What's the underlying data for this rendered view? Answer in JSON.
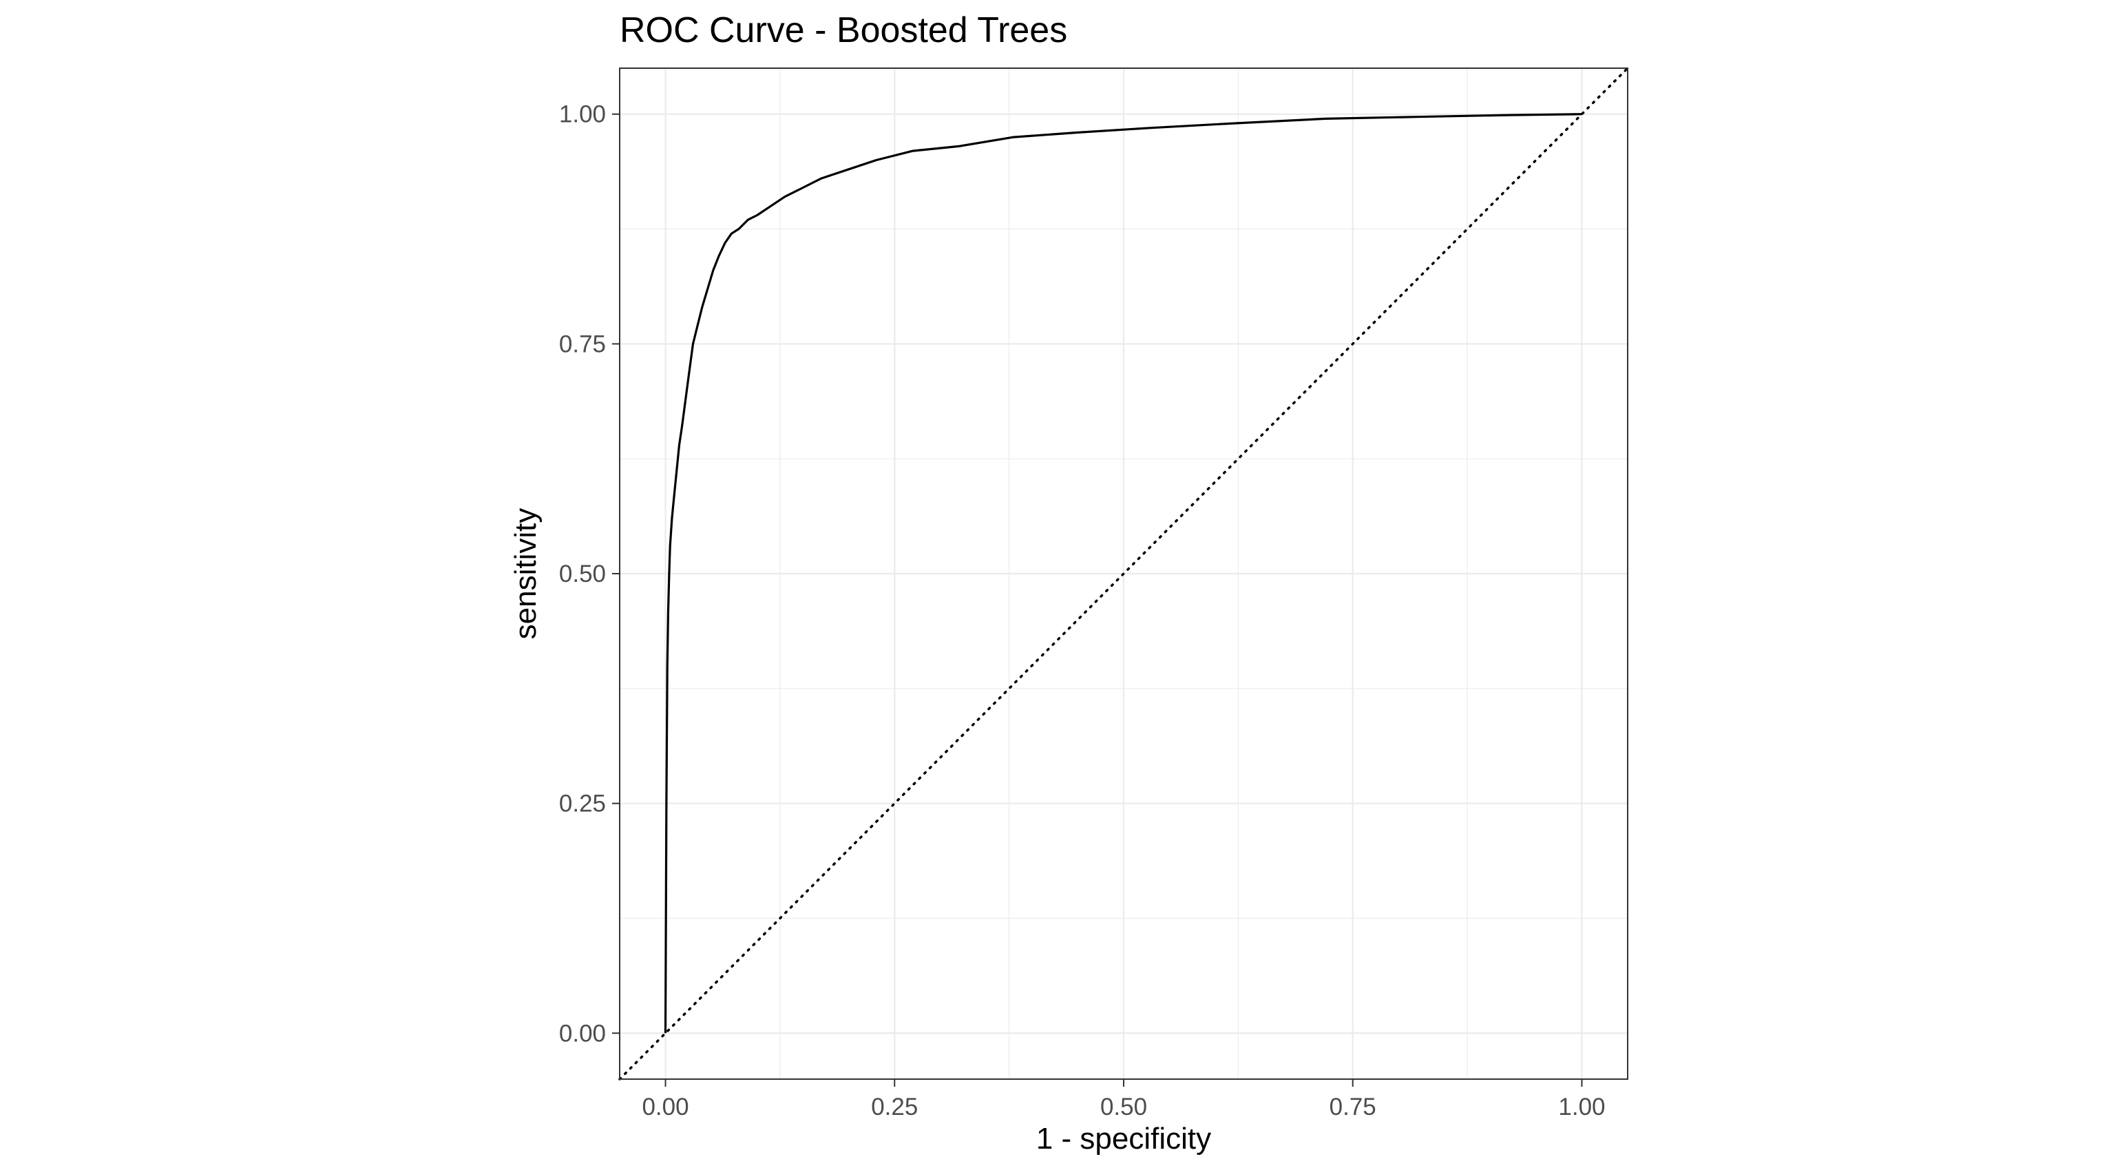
{
  "chart_data": {
    "type": "line",
    "title": "ROC Curve - Boosted Trees",
    "xlabel": "1 - specificity",
    "ylabel": "sensitivity",
    "xlim": [
      -0.05,
      1.05
    ],
    "ylim": [
      -0.05,
      1.05
    ],
    "x_ticks": [
      "0.00",
      "0.25",
      "0.50",
      "0.75",
      "1.00"
    ],
    "y_ticks": [
      "0.00",
      "0.25",
      "0.50",
      "0.75",
      "1.00"
    ],
    "grid": true,
    "reference_line": {
      "style": "dotted",
      "x": [
        -0.05,
        1.05
      ],
      "y": [
        -0.05,
        1.05
      ]
    },
    "series": [
      {
        "x": [
          0.0,
          0.001,
          0.002,
          0.003,
          0.004,
          0.005,
          0.007,
          0.009,
          0.012,
          0.015,
          0.018,
          0.022,
          0.026,
          0.03,
          0.035,
          0.04,
          0.046,
          0.052,
          0.058,
          0.065,
          0.072,
          0.08,
          0.09,
          0.1,
          0.115,
          0.13,
          0.15,
          0.17,
          0.2,
          0.23,
          0.27,
          0.32,
          0.38,
          0.45,
          0.53,
          0.62,
          0.72,
          0.82,
          0.92,
          1.0
        ],
        "y": [
          0.0,
          0.25,
          0.4,
          0.46,
          0.5,
          0.53,
          0.56,
          0.58,
          0.61,
          0.64,
          0.66,
          0.69,
          0.72,
          0.75,
          0.77,
          0.79,
          0.81,
          0.83,
          0.845,
          0.86,
          0.87,
          0.875,
          0.885,
          0.89,
          0.9,
          0.91,
          0.92,
          0.93,
          0.94,
          0.95,
          0.96,
          0.965,
          0.975,
          0.98,
          0.985,
          0.99,
          0.995,
          0.997,
          0.999,
          1.0
        ]
      }
    ]
  }
}
